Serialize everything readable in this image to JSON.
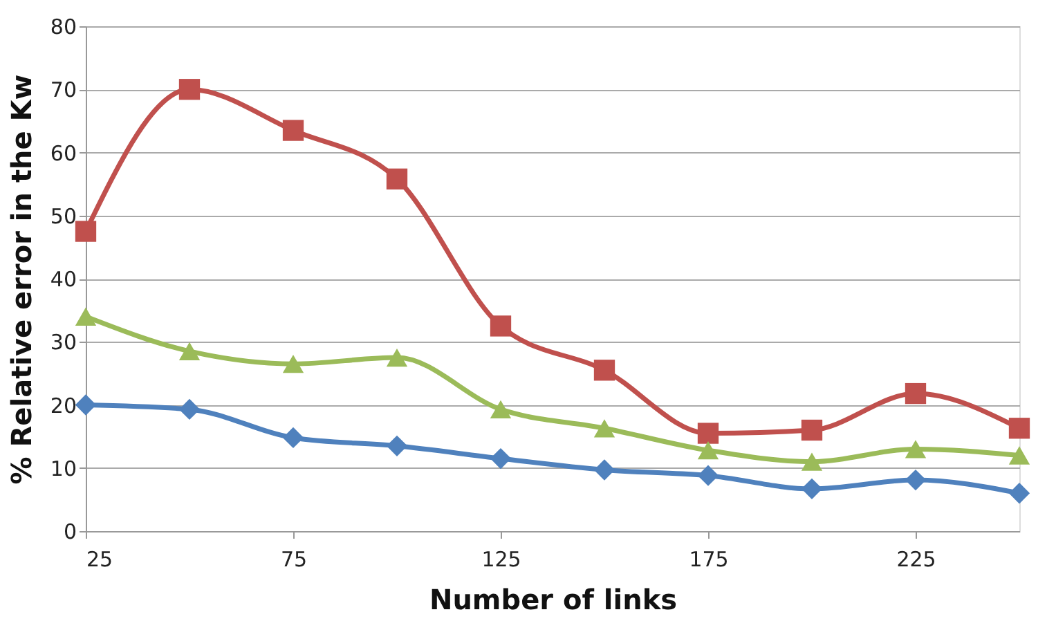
{
  "chart_data": {
    "type": "line",
    "xlabel": "Number of links",
    "ylabel": "% Relative error in the Kw",
    "x": [
      25,
      50,
      75,
      100,
      125,
      150,
      175,
      200,
      225,
      250
    ],
    "series": [
      {
        "color": "#4f81bd",
        "marker": "diamond",
        "values": [
          20,
          19.3,
          14.8,
          13.5,
          11.5,
          9.7,
          8.8,
          6.7,
          8.1,
          6
        ]
      },
      {
        "color": "#c0504d",
        "marker": "square",
        "values": [
          47.5,
          70,
          63.5,
          55.8,
          32.5,
          25.5,
          15.5,
          16,
          21.8,
          16.3
        ]
      },
      {
        "color": "#9bbb59",
        "marker": "triangle",
        "values": [
          34,
          28.5,
          26.5,
          27.5,
          19.3,
          16.3,
          12.8,
          11,
          13,
          12
        ]
      }
    ],
    "xlim": [
      25,
      250
    ],
    "xticks": [
      25,
      75,
      125,
      175,
      225
    ],
    "ylim": [
      0,
      80
    ],
    "yticks": [
      0,
      10,
      20,
      30,
      40,
      50,
      60,
      70,
      80
    ],
    "grid": "y",
    "line_style": "solid"
  }
}
